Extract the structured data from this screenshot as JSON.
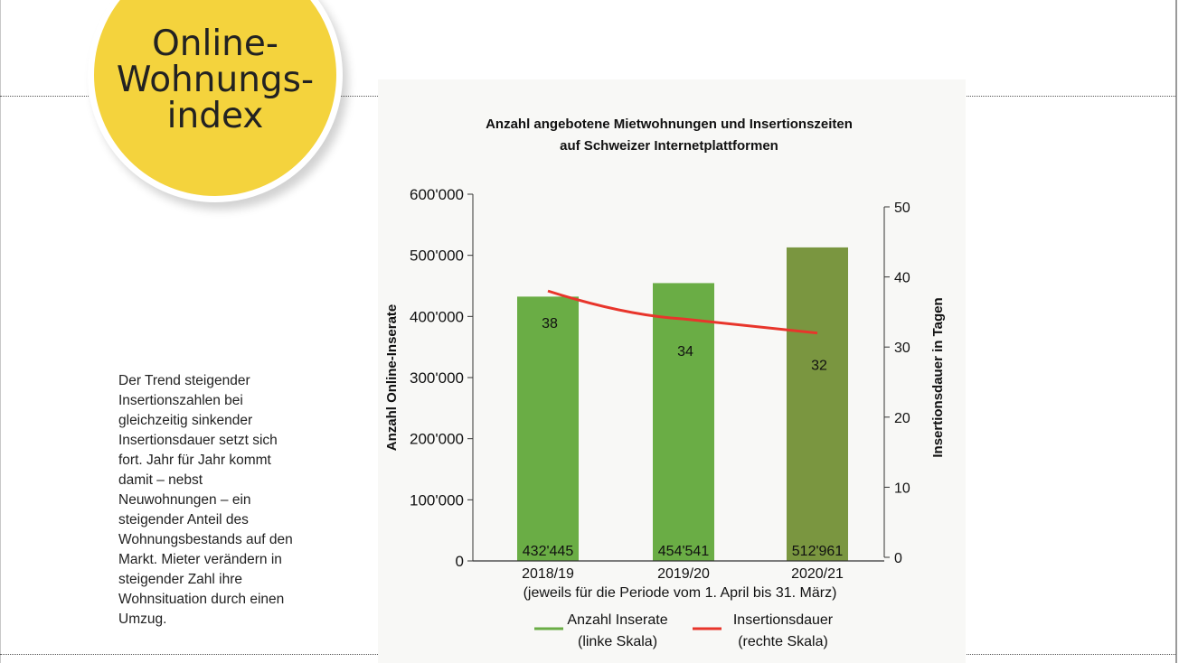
{
  "badge": {
    "lines": [
      "Online-",
      "Wohnungs-",
      "index"
    ]
  },
  "body_text": "Der Trend steigender Insertionszahlen bei gleichzeitig sinkender Insertionsdauer setzt sich fort. Jahr für Jahr kommt damit – nebst Neuwohnungen – ein steigender Anteil des Wohnungsbestands auf den Markt. Mieter verändern in steigender Zahl ihre Wohnsituation durch einen Umzug.",
  "chart_data": {
    "type": "bar",
    "title": [
      "Anzahl angebotene Mietwohnungen und Insertionszeiten",
      "auf Schweizer Internetplattformen"
    ],
    "categories": [
      "2018/19",
      "2019/20",
      "2020/21"
    ],
    "xlabel": "(jeweils für die Periode vom 1. April bis 31. März)",
    "ylabel": "Anzahl Online-Inserate",
    "y2label": "Insertionsdauer in Tagen",
    "ylim": [
      0,
      600000
    ],
    "y2lim": [
      0,
      50
    ],
    "yticks": [
      "0",
      "100'000",
      "200'000",
      "300'000",
      "400'000",
      "500'000",
      "600'000"
    ],
    "y2ticks": [
      "0",
      "10",
      "20",
      "30",
      "40",
      "50"
    ],
    "series": [
      {
        "name": "Anzahl Inserate",
        "sub": "(linke Skala)",
        "type": "bar",
        "axis": "left",
        "values": [
          432445,
          454541,
          512961
        ],
        "labels": [
          "432'445",
          "454'541",
          "512'961"
        ],
        "colors": [
          "#6aad45",
          "#6aad45",
          "#7a9640"
        ]
      },
      {
        "name": "Insertionsdauer",
        "sub": "(rechte Skala)",
        "type": "line",
        "axis": "right",
        "values": [
          38,
          34,
          32
        ],
        "labels": [
          "38",
          "34",
          "32"
        ],
        "color": "#e8352b"
      }
    ],
    "legend": "bottom"
  }
}
